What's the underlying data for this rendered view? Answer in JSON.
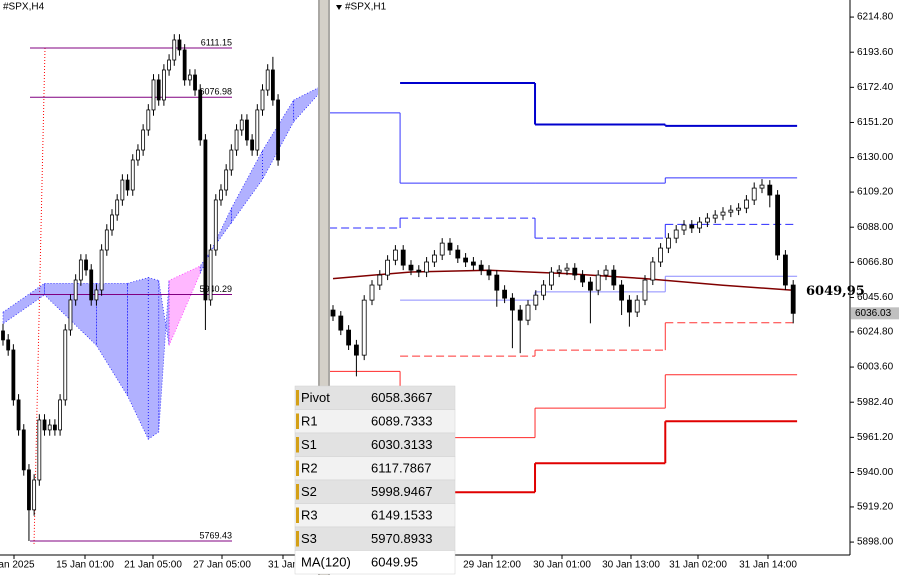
{
  "chart_data": [
    {
      "type": "candlestick",
      "title": "#SPX,H4",
      "ylim": [
        5759.7,
        6144.4
      ],
      "levels": [
        6111.15,
        6076.98,
        5940.29,
        5769.43
      ],
      "level_color": "#800080",
      "x_labels": [
        "Jan 2025",
        "15 Jan 01:00",
        "21 Jan 05:00",
        "27 Jan 05:00",
        "31 Jan"
      ],
      "ohlc": [
        [
          5915,
          5920,
          5904.8,
          5908.8
        ],
        [
          5908.8,
          5912.8,
          5897.8,
          5901.8
        ],
        [
          5901.8,
          5905.8,
          5863.2,
          5867.2
        ],
        [
          5867.2,
          5871.2,
          5842.4,
          5846.4
        ],
        [
          5846.4,
          5850.4,
          5814.7,
          5818.7
        ],
        [
          5818.7,
          5822.7,
          5769.43,
          5791.0
        ],
        [
          5791.0,
          5815.7,
          5787,
          5811.7
        ],
        [
          5811.7,
          5857.3,
          5807.7,
          5853.3
        ],
        [
          5853.3,
          5857.3,
          5842.4,
          5846.4
        ],
        [
          5846.4,
          5853.8,
          5842.4,
          5849.8
        ],
        [
          5849.8,
          5853.8,
          5842.4,
          5846.4
        ],
        [
          5846.4,
          5871.2,
          5842.4,
          5867.2
        ],
        [
          5867.2,
          5919.7,
          5863.2,
          5915.7
        ],
        [
          5915.7,
          5940.5,
          5911.7,
          5936.5
        ],
        [
          5936.5,
          5954.3,
          5932.5,
          5950.3
        ],
        [
          5950.3,
          5968.2,
          5946.3,
          5964.2
        ],
        [
          5964.2,
          5968.2,
          5953.3,
          5957.3
        ],
        [
          5957.3,
          5961.3,
          5932.5,
          5936.5
        ],
        [
          5936.5,
          5947.4,
          5932.5,
          5943.4
        ],
        [
          5943.4,
          5975.1,
          5939.4,
          5971.1
        ],
        [
          5971.1,
          5989,
          5967.1,
          5985.0
        ],
        [
          5985.0,
          5999.4,
          5981,
          5995.4
        ],
        [
          5995.4,
          6009.8,
          5991.4,
          6005.8
        ],
        [
          6005.8,
          6023.6,
          6001.8,
          6019.6
        ],
        [
          6019.6,
          6023.6,
          6008.7,
          6012.7
        ],
        [
          6012.7,
          6037.5,
          6008.7,
          6033.5
        ],
        [
          6033.5,
          6044.4,
          6029.5,
          6040.4
        ],
        [
          6040.4,
          6058.3,
          6036.4,
          6054.3
        ],
        [
          6054.3,
          6072.2,
          6050.3,
          6068.2
        ],
        [
          6068.2,
          6093,
          6064.2,
          6089.0
        ],
        [
          6089.0,
          6093,
          6071.1,
          6075.1
        ],
        [
          6075.1,
          6099.9,
          6071.1,
          6095.9
        ],
        [
          6095.9,
          6106.8,
          6091.9,
          6102.8
        ],
        [
          6102.8,
          6120.7,
          6098.8,
          6116.7
        ],
        [
          6116.7,
          6120.7,
          6105.8,
          6109.8
        ],
        [
          6109.8,
          6113.8,
          6085,
          6089.0
        ],
        [
          6089.0,
          6096.4,
          6085,
          6092.4
        ],
        [
          6092.4,
          6096.4,
          6078,
          6082.0
        ],
        [
          6082.0,
          6086,
          6043.4,
          6047.4
        ],
        [
          6047.4,
          6051.4,
          5915.7,
          5936.5
        ],
        [
          5936.5,
          5975.1,
          5932.5,
          5971.1
        ],
        [
          5971.1,
          6009.8,
          5967.1,
          6005.8
        ],
        [
          6005.8,
          6016.7,
          6001.8,
          6012.7
        ],
        [
          6012.7,
          6030.6,
          6008.7,
          6026.6
        ],
        [
          6026.6,
          6044.4,
          6022.6,
          6040.4
        ],
        [
          6040.4,
          6058.3,
          6036.4,
          6054.3
        ],
        [
          6054.3,
          6065.2,
          6050.3,
          6061.2
        ],
        [
          6061.2,
          6065.2,
          6043.4,
          6047.4
        ],
        [
          6047.4,
          6051.4,
          6036.4,
          6040.4
        ],
        [
          6040.4,
          6072.2,
          6036.4,
          6068.2
        ],
        [
          6068.2,
          6086,
          6064.2,
          6082.0
        ],
        [
          6082.0,
          6099.9,
          6078,
          6095.9
        ],
        [
          6095.9,
          6105,
          6071.1,
          6075.1
        ],
        [
          6075.1,
          6079.1,
          6029.5,
          6033.5
        ]
      ],
      "cloud": {
        "x": [
          0,
          8,
          18,
          24,
          28,
          30,
          32,
          38,
          44,
          50,
          56,
          61
        ],
        "span_a": [
          5928,
          5948,
          5948,
          5948,
          5952,
          5950,
          5905,
          5955,
          6000,
          6040,
          6075,
          6084
        ],
        "span_b": [
          5920,
          5940,
          5905,
          5870,
          5840,
          5845,
          5950,
          5960,
          5990,
          6020,
          6060,
          6080
        ],
        "up_color": "#2020ff",
        "down_color": "#ff30ff"
      }
    },
    {
      "type": "candlestick",
      "title": "#SPX,H1",
      "ylim": [
        5890.2,
        6225.1
      ],
      "yticks": [
        {
          "value": 6214.8,
          "label": "6214.80"
        },
        {
          "value": 6193.6,
          "label": "6193.60"
        },
        {
          "value": 6172.4,
          "label": "6172.40"
        },
        {
          "value": 6151.2,
          "label": "6151.20"
        },
        {
          "value": 6130,
          "label": "6130.00"
        },
        {
          "value": 6109.2,
          "label": "6109.20"
        },
        {
          "value": 6088,
          "label": "6088.00"
        },
        {
          "value": 6066.8,
          "label": "6066.80"
        },
        {
          "value": 6045.6,
          "label": "6045.60"
        },
        {
          "value": 6024.8,
          "label": "6024.80"
        },
        {
          "value": 6003.6,
          "label": "6003.60"
        },
        {
          "value": 5982.4,
          "label": "5982.40"
        },
        {
          "value": 5961.2,
          "label": "5961.20"
        },
        {
          "value": 5940,
          "label": "5940.00"
        },
        {
          "value": 5919.2,
          "label": "5919.20"
        },
        {
          "value": 5898,
          "label": "5898.00"
        }
      ],
      "x_labels": [
        "29 Jan 12:00",
        "30 Jan 01:00",
        "30 Jan 13:00",
        "31 Jan 02:00",
        "31 Jan 14:00"
      ],
      "ohlc": [
        [
          6038,
          6041,
          6031.4,
          6034.4
        ],
        [
          6034.4,
          6037.4,
          6022.9,
          6025.9
        ],
        [
          6025.9,
          6028.9,
          6013.9,
          6016.9
        ],
        [
          6016.9,
          6020,
          5998,
          6010.8
        ],
        [
          6010.8,
          6047,
          6007.8,
          6044.0
        ],
        [
          6044.0,
          6056.1,
          6041,
          6053.1
        ],
        [
          6053.1,
          6062.1,
          6050.1,
          6059.1
        ],
        [
          6059.1,
          6071.1,
          6056.1,
          6068.1
        ],
        [
          6068.1,
          6077.2,
          6065.1,
          6074.2
        ],
        [
          6074.2,
          6077.2,
          6062.1,
          6065.1
        ],
        [
          6065.1,
          6068.1,
          6059.1,
          6062.1
        ],
        [
          6062.1,
          6065.1,
          6057.9,
          6060.9
        ],
        [
          6060.9,
          6070,
          6057.9,
          6067.0
        ],
        [
          6067.0,
          6074.2,
          6064,
          6071.2
        ],
        [
          6071.2,
          6081.4,
          6068.2,
          6078.4
        ],
        [
          6078.4,
          6081.4,
          6071.2,
          6074.2
        ],
        [
          6074.2,
          6077.2,
          6066.4,
          6069.4
        ],
        [
          6069.4,
          6072.4,
          6064,
          6067.0
        ],
        [
          6067.0,
          6070,
          6062.1,
          6065.1
        ],
        [
          6065.1,
          6068.1,
          6059.1,
          6062.1
        ],
        [
          6062.1,
          6065.1,
          6056.1,
          6059.1
        ],
        [
          6059.1,
          6062.1,
          6040,
          6050.0
        ],
        [
          6050.0,
          6053,
          6042.2,
          6045.2
        ],
        [
          6045.2,
          6048.2,
          6015,
          6038.0
        ],
        [
          6038.0,
          6041,
          6012,
          6031.9
        ],
        [
          6031.9,
          6044,
          6028.9,
          6041.0
        ],
        [
          6041.0,
          6050,
          6038,
          6047.0
        ],
        [
          6047.0,
          6056.1,
          6044,
          6053.1
        ],
        [
          6053.1,
          6063.9,
          6050.1,
          6060.9
        ],
        [
          6060.9,
          6065.1,
          6057.9,
          6062.1
        ],
        [
          6062.1,
          6066.3,
          6059.1,
          6063.3
        ],
        [
          6063.3,
          6066.3,
          6056.1,
          6059.1
        ],
        [
          6059.1,
          6062.1,
          6051.9,
          6054.9
        ],
        [
          6054.9,
          6057.9,
          6030,
          6050.0
        ],
        [
          6050.0,
          6062.1,
          6047,
          6059.1
        ],
        [
          6059.1,
          6065.1,
          6056.1,
          6062.1
        ],
        [
          6062.1,
          6065.1,
          6050.1,
          6053.1
        ],
        [
          6053.1,
          6056.1,
          6035,
          6044.0
        ],
        [
          6044.0,
          6047,
          6028,
          6036.8
        ],
        [
          6036.8,
          6047,
          6033.8,
          6044.0
        ],
        [
          6044.0,
          6059.1,
          6041,
          6056.1
        ],
        [
          6056.1,
          6070,
          6053.1,
          6067.0
        ],
        [
          6067.0,
          6078.4,
          6064,
          6075.4
        ],
        [
          6075.4,
          6084.4,
          6072.4,
          6081.4
        ],
        [
          6081.4,
          6089.3,
          6078.4,
          6086.3
        ],
        [
          6086.3,
          6092.3,
          6083.3,
          6089.3
        ],
        [
          6089.3,
          6092.3,
          6084.5,
          6087.5
        ],
        [
          6087.5,
          6094.1,
          6084.5,
          6091.1
        ],
        [
          6091.1,
          6096.5,
          6088.1,
          6093.5
        ],
        [
          6093.5,
          6098.3,
          6090.5,
          6095.3
        ],
        [
          6095.3,
          6100.1,
          6092.3,
          6097.1
        ],
        [
          6097.1,
          6101.3,
          6094.1,
          6098.3
        ],
        [
          6098.3,
          6102.5,
          6095.3,
          6099.5
        ],
        [
          6099.5,
          6107.4,
          6096.5,
          6104.4
        ],
        [
          6104.4,
          6115,
          6101.4,
          6111.6
        ],
        [
          6111.6,
          6117,
          6108.6,
          6113.4
        ],
        [
          6113.4,
          6116.4,
          6100,
          6107.4
        ],
        [
          6107.4,
          6110.4,
          6068.2,
          6071.2
        ],
        [
          6071.2,
          6074.2,
          6050.1,
          6053.1
        ],
        [
          6053.1,
          6056.1,
          6030,
          6036.03
        ]
      ],
      "ma": {
        "color": "#800000",
        "x": [
          0,
          10,
          20,
          30,
          40,
          50,
          59
        ],
        "values": [
          6057,
          6061,
          6062,
          6060,
          6057,
          6053,
          6049.95
        ],
        "value_labels": [
          null,
          null,
          null,
          null,
          null,
          null,
          "6049,95"
        ]
      },
      "levels": [
        {
          "color": "#0000cd",
          "style": "thick",
          "values": [
            null,
            6175,
            6150,
            6149.1533
          ]
        },
        {
          "color": "#3535ff",
          "style": "thin",
          "values": [
            6157,
            6114.6,
            6114.6,
            6117.7867
          ]
        },
        {
          "color": "#2b2bff",
          "style": "dashed",
          "values": [
            6087.5,
            6093.5,
            6081.4,
            6089.7333
          ]
        },
        {
          "color": "#8c8cff",
          "style": "thin",
          "values": [
            null,
            6044,
            6049,
            6058.3667
          ]
        },
        {
          "color": "#ff3333",
          "style": "dashed",
          "values": [
            null,
            6010.2,
            6013.8,
            6030.3133
          ]
        },
        {
          "color": "#ff2a2a",
          "style": "thin",
          "values": [
            6001,
            5961,
            5978.8,
            5998.9467
          ]
        },
        {
          "color": "#e00000",
          "style": "thick",
          "values": [
            null,
            5928.1,
            5945.6,
            5970.8933
          ]
        }
      ]
    }
  ],
  "table": {
    "rows": [
      [
        "Pivot",
        6058.3667
      ],
      [
        "R1",
        6089.7333
      ],
      [
        "S1",
        6030.3133
      ],
      [
        "R2",
        6117.7867
      ],
      [
        "S2",
        5998.9467
      ],
      [
        "R3",
        6149.1533
      ],
      [
        "S3",
        5970.8933
      ],
      [
        "MA(120)",
        6049.95
      ]
    ]
  }
}
